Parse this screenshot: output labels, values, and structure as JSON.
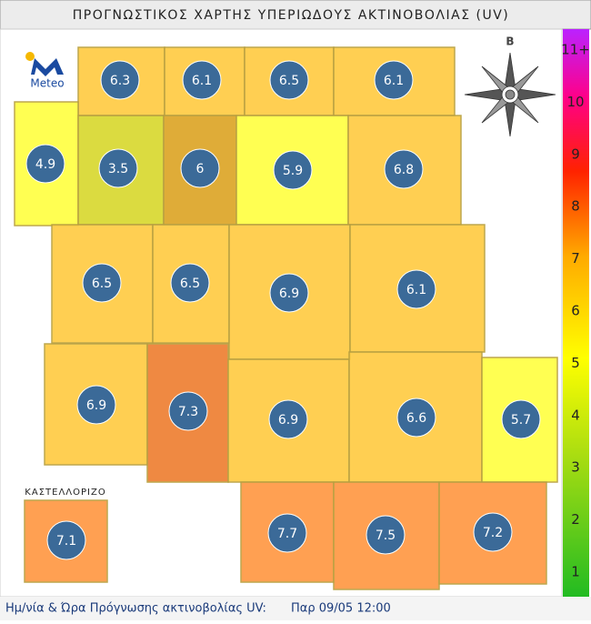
{
  "title": "ΠΡΟΓΝΩΣΤΙΚΟΣ ΧΑΡΤΗΣ ΥΠΕΡΙΩΔΟΥΣ ΑΚΤΙΝΟΒΟΛΙΑΣ (UV)",
  "logo": "Meteo",
  "compass": "Β",
  "inset_label": "ΚΑΣΤΕΛΛΟΡΙΖΟ",
  "cells": [
    {
      "value": 6.3,
      "color": "#ffcc44"
    },
    {
      "value": 6.1,
      "color": "#ffcc44"
    },
    {
      "value": 6.5,
      "color": "#ffcc44"
    },
    {
      "value": 6.1,
      "color": "#ffcc44"
    },
    {
      "value": 4.9,
      "color": "#ffff44"
    },
    {
      "value": 3.5,
      "color": "#d8d830"
    },
    {
      "value": 6.0,
      "color": "#dda628"
    },
    {
      "value": 5.9,
      "color": "#ffff44"
    },
    {
      "value": 6.8,
      "color": "#ffcc44"
    },
    {
      "value": 6.5,
      "color": "#ffcc44"
    },
    {
      "value": 6.5,
      "color": "#ffcc44"
    },
    {
      "value": 6.9,
      "color": "#ffcc44"
    },
    {
      "value": 6.1,
      "color": "#ffcc44"
    },
    {
      "value": 6.9,
      "color": "#ffcc44"
    },
    {
      "value": 7.3,
      "color": "#ee8033"
    },
    {
      "value": 6.9,
      "color": "#ffcc44"
    },
    {
      "value": 6.6,
      "color": "#ffcc44"
    },
    {
      "value": 5.7,
      "color": "#ffff44"
    },
    {
      "value": 7.1,
      "color": "#ff9944"
    },
    {
      "value": 7.7,
      "color": "#ff9944"
    },
    {
      "value": 7.5,
      "color": "#ff9944"
    },
    {
      "value": 7.2,
      "color": "#ff9944"
    }
  ],
  "legend": {
    "labels": [
      "11+",
      10,
      9,
      8,
      7,
      6,
      5,
      4,
      3,
      2,
      1
    ]
  },
  "footer": {
    "label": "Ημ/νία & Ώρα Πρόγνωσης ακτινοβολίας UV:",
    "value": "Παρ 09/05 12:00"
  }
}
